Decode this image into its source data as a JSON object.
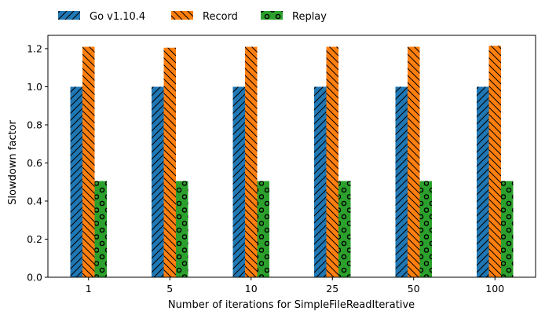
{
  "colors": {
    "go": "#1f77b4",
    "record": "#ff7f0e",
    "replay": "#2ca02c",
    "hatch": "#000000",
    "axis": "#000000"
  },
  "legend": {
    "placement": "top-left, above plot",
    "entries": [
      {
        "label": "Go v1.10.4",
        "color": "#1f77b4",
        "hatch": "forward-diagonal"
      },
      {
        "label": "Record",
        "color": "#ff7f0e",
        "hatch": "back-diagonal"
      },
      {
        "label": "Replay",
        "color": "#2ca02c",
        "hatch": "circles"
      }
    ]
  },
  "chart_data": {
    "type": "bar",
    "title": "",
    "xlabel": "Number of iterations for SimpleFileReadIterative",
    "ylabel": "Slowdown factor",
    "categories": [
      "1",
      "5",
      "10",
      "25",
      "50",
      "100"
    ],
    "series": [
      {
        "name": "Go v1.10.4",
        "values": [
          1.0,
          1.0,
          1.0,
          1.0,
          1.0,
          1.0
        ]
      },
      {
        "name": "Record",
        "values": [
          1.21,
          1.205,
          1.21,
          1.21,
          1.21,
          1.215
        ]
      },
      {
        "name": "Replay",
        "values": [
          0.505,
          0.505,
          0.505,
          0.505,
          0.505,
          0.505
        ]
      }
    ],
    "ylim": [
      0,
      1.27
    ],
    "yticks": [
      "0.0",
      "0.2",
      "0.4",
      "0.6",
      "0.8",
      "1.0",
      "1.2"
    ],
    "grid": false,
    "legend_position": "top"
  }
}
